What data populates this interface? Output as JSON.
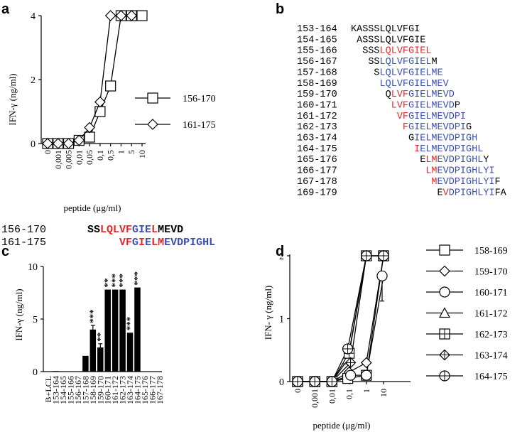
{
  "panel_labels": {
    "a": "a",
    "b": "b",
    "c": "c",
    "d": "d"
  },
  "colors": {
    "red": "#e8262a",
    "blue": "#3a4fb0",
    "black": "#000000"
  },
  "panel_a": {
    "chart_data": {
      "type": "line",
      "ylabel": "IFN-γ (ng/ml)",
      "xlabel": "peptide (μg/ml)",
      "ylim": [
        0,
        4
      ],
      "y_ticks": [
        "0",
        "2",
        "4"
      ],
      "categories": [
        "0",
        "0,001",
        "0,005",
        "0,01",
        "0,05",
        "0,1",
        "0,5",
        "1",
        "5",
        "10"
      ],
      "series": [
        {
          "name": "156-170",
          "marker": "square",
          "values": [
            0,
            0,
            0,
            0.1,
            0.2,
            1.0,
            1.8,
            4.0,
            4.0,
            4.0
          ]
        },
        {
          "name": "161-175",
          "marker": "diamond",
          "values": [
            0,
            0,
            0,
            0.1,
            0.5,
            1.3,
            4.0,
            4.0,
            4.0,
            null
          ]
        }
      ]
    },
    "sequences": [
      {
        "label": "156-170",
        "pre": "    ",
        "segments": [
          {
            "t": "SS",
            "c": "black"
          },
          {
            "t": "LQLVF",
            "c": "red"
          },
          {
            "t": "GIE",
            "c": "blue"
          },
          {
            "t": "L",
            "c": "red"
          },
          {
            "t": "MEVD",
            "c": "black"
          }
        ]
      },
      {
        "label": "161-175",
        "pre": "         ",
        "segments": [
          {
            "t": "VF",
            "c": "red"
          },
          {
            "t": "G",
            "c": "blue"
          },
          {
            "t": "I",
            "c": "red"
          },
          {
            "t": "E",
            "c": "blue"
          },
          {
            "t": "LM",
            "c": "red"
          },
          {
            "t": "EVDPIGHL",
            "c": "blue"
          }
        ]
      }
    ]
  },
  "panel_b": {
    "rows": [
      {
        "label": "153-164",
        "pre": "",
        "segments": [
          {
            "t": "KASSSLQLVFGI",
            "c": "black"
          }
        ]
      },
      {
        "label": "154-165",
        "pre": " ",
        "segments": [
          {
            "t": "ASSSLQLVFGIE",
            "c": "black"
          }
        ]
      },
      {
        "label": "155-166",
        "pre": "  ",
        "segments": [
          {
            "t": "SSS",
            "c": "black"
          },
          {
            "t": "LQLVFGIEL",
            "c": "red"
          }
        ]
      },
      {
        "label": "156-167",
        "pre": "   ",
        "segments": [
          {
            "t": "SS",
            "c": "black"
          },
          {
            "t": "LQLVFGIEL",
            "c": "blue"
          },
          {
            "t": "M",
            "c": "black"
          }
        ]
      },
      {
        "label": "157-168",
        "pre": "    ",
        "segments": [
          {
            "t": "S",
            "c": "black"
          },
          {
            "t": "LQLVFGIELME",
            "c": "blue"
          }
        ]
      },
      {
        "label": "158-169",
        "pre": "     ",
        "segments": [
          {
            "t": "LQLVFGIELMEV",
            "c": "blue"
          }
        ]
      },
      {
        "label": "159-170",
        "pre": "      ",
        "segments": [
          {
            "t": "Q",
            "c": "black"
          },
          {
            "t": "LVF",
            "c": "red"
          },
          {
            "t": "GIELMEVD",
            "c": "blue"
          }
        ]
      },
      {
        "label": "160-171",
        "pre": "       ",
        "segments": [
          {
            "t": "LVF",
            "c": "red"
          },
          {
            "t": "GIELMEVD",
            "c": "blue"
          },
          {
            "t": "P",
            "c": "black"
          }
        ]
      },
      {
        "label": "161-172",
        "pre": "        ",
        "segments": [
          {
            "t": "VF",
            "c": "red"
          },
          {
            "t": "GIELMEVDPI",
            "c": "blue"
          }
        ]
      },
      {
        "label": "162-173",
        "pre": "         ",
        "segments": [
          {
            "t": "F",
            "c": "red"
          },
          {
            "t": "GIELMEVDPI",
            "c": "blue"
          },
          {
            "t": "G",
            "c": "black"
          }
        ]
      },
      {
        "label": "163-174",
        "pre": "          ",
        "segments": [
          {
            "t": "G",
            "c": "black"
          },
          {
            "t": "IELMEVDPIGH",
            "c": "blue"
          }
        ]
      },
      {
        "label": "164-175",
        "pre": "           ",
        "segments": [
          {
            "t": "I",
            "c": "red"
          },
          {
            "t": "ELMEVDPIGHL",
            "c": "blue"
          }
        ]
      },
      {
        "label": "165-176",
        "pre": "            ",
        "segments": [
          {
            "t": "E",
            "c": "black"
          },
          {
            "t": "LM",
            "c": "red"
          },
          {
            "t": "EVDPIGHL",
            "c": "blue"
          },
          {
            "t": "Y",
            "c": "black"
          }
        ]
      },
      {
        "label": "166-177",
        "pre": "             ",
        "segments": [
          {
            "t": "LM",
            "c": "red"
          },
          {
            "t": "EVDPIGHLYI",
            "c": "blue"
          }
        ]
      },
      {
        "label": "167-178",
        "pre": "              ",
        "segments": [
          {
            "t": "M",
            "c": "red"
          },
          {
            "t": "EVDPIGHLYI",
            "c": "blue"
          },
          {
            "t": "F",
            "c": "black"
          }
        ]
      },
      {
        "label": "169-179",
        "pre": "               ",
        "segments": [
          {
            "t": "E",
            "c": "black"
          },
          {
            "t": "V",
            "c": "red"
          },
          {
            "t": "DPIGHLYI",
            "c": "blue"
          },
          {
            "t": "FA",
            "c": "black"
          }
        ]
      }
    ]
  },
  "panel_c": {
    "chart_data": {
      "type": "bar",
      "ylabel": "IFN-γ (ng/ml)",
      "ylim": [
        0,
        10
      ],
      "y_ticks": [
        "0",
        "5",
        "10"
      ],
      "categories": [
        "B+LCL",
        "153-164",
        "154-165",
        "155-166",
        "156-167",
        "157-168",
        "158-169",
        "159-170",
        "160-171",
        "161-172",
        "162-173",
        "163-174",
        "164-175",
        "165-176",
        "166-177",
        "167-178"
      ],
      "values": [
        0,
        0.05,
        0,
        0,
        0,
        1.5,
        4.0,
        2.3,
        7.8,
        7.8,
        7.8,
        3.7,
        8.0,
        0,
        0,
        0
      ],
      "errors": [
        0,
        0,
        0,
        0,
        0,
        0,
        0.4,
        0.35,
        0,
        0,
        0,
        0,
        0,
        0,
        0,
        0
      ],
      "significance": [
        "",
        "",
        "",
        "",
        "",
        "",
        "***",
        "**",
        "**",
        "***",
        "***",
        "***",
        "***",
        "",
        "",
        ""
      ]
    }
  },
  "panel_d": {
    "chart_data": {
      "type": "line",
      "ylabel": "IFN- γ (ng/ml)",
      "xlabel": "peptide (μg/ml)",
      "ylim": [
        0,
        2
      ],
      "y_ticks": [
        "0",
        "1",
        "2"
      ],
      "categories": [
        "0",
        "0,001",
        "0,01",
        "0,1",
        "1",
        "10"
      ],
      "series": [
        {
          "name": "158-169",
          "marker": "square",
          "values": [
            0,
            0,
            0,
            0.05,
            0.1,
            2.0
          ]
        },
        {
          "name": "159-170",
          "marker": "diamond",
          "values": [
            0,
            0,
            0,
            0.15,
            0.3,
            2.0
          ]
        },
        {
          "name": "160-171",
          "marker": "circle",
          "values": [
            0,
            0,
            0,
            0.1,
            0.1,
            1.68
          ]
        },
        {
          "name": "161-172",
          "marker": "triangle",
          "values": [
            0,
            0,
            0,
            0.35,
            2.0,
            2.0
          ]
        },
        {
          "name": "162-173",
          "marker": "boxplus",
          "values": [
            0,
            0,
            0,
            0.45,
            2.0,
            2.0
          ]
        },
        {
          "name": "163-174",
          "marker": "diamondplus",
          "values": [
            0,
            0,
            0,
            0.3,
            2.0,
            2.0
          ]
        },
        {
          "name": "164-175",
          "marker": "circleplus",
          "values": [
            0,
            0,
            0,
            0.52,
            2.0,
            2.0
          ]
        }
      ],
      "error_160_171": 0.4
    }
  }
}
